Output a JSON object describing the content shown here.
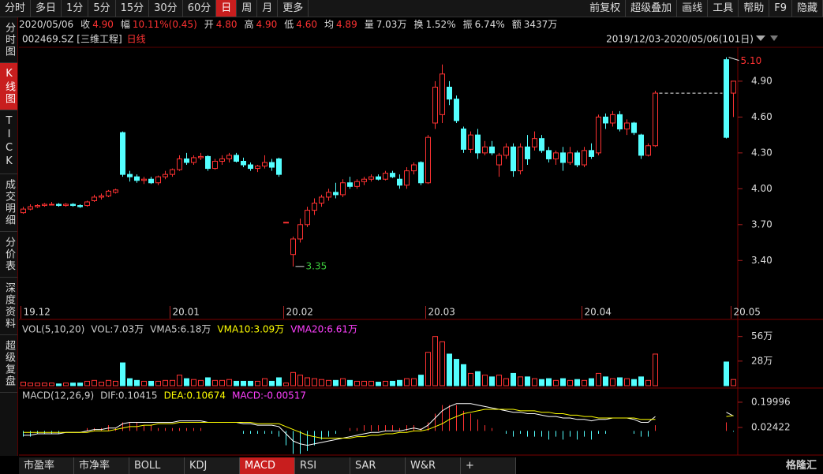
{
  "toolbar": {
    "left": [
      "分时",
      "多日",
      "1分",
      "5分",
      "15分",
      "30分",
      "60分",
      "日",
      "周",
      "月",
      "更多"
    ],
    "right": [
      "前复权",
      "超级叠加",
      "画线",
      "工具",
      "帮助",
      "F9",
      "隐藏"
    ],
    "active": 7
  },
  "info": {
    "date": "2020/05/06",
    "items": [
      {
        "label": "收",
        "value": "4.90",
        "color": "#ff3232"
      },
      {
        "label": "幅",
        "value": "10.11%(0.45)",
        "color": "#ff3232"
      },
      {
        "label": "开",
        "value": "4.80",
        "color": "#ff3232"
      },
      {
        "label": "高",
        "value": "4.90",
        "color": "#ff3232"
      },
      {
        "label": "低",
        "value": "4.60",
        "color": "#ff3232"
      },
      {
        "label": "均",
        "value": "4.89",
        "color": "#ff3232"
      },
      {
        "label": "量",
        "value": "7.03万",
        "color": "#dddddd"
      },
      {
        "label": "换",
        "value": "1.52%",
        "color": "#dddddd"
      },
      {
        "label": "振",
        "value": "6.74%",
        "color": "#dddddd"
      },
      {
        "label": "额",
        "value": "3437万",
        "color": "#dddddd"
      }
    ]
  },
  "sidebar": {
    "items": [
      "分时图",
      "K线图",
      "TICK",
      "成交明细",
      "分价表",
      "深度资料",
      "超级复盘"
    ],
    "active": 1
  },
  "tabs": {
    "items": [
      "市盈率",
      "市净率",
      "BOLL",
      "KDJ",
      "MACD",
      "RSI",
      "SAR",
      "W&R",
      "+"
    ],
    "active": 4
  },
  "logo": "格隆汇",
  "chart_data": [
    {
      "type": "candlestick",
      "stock": "002469.SZ [三维工程]",
      "period": "日线",
      "range": "2019/12/03-2020/05/06(101日)",
      "categories": [
        "19.12",
        null,
        null,
        null,
        null,
        null,
        null,
        null,
        null,
        null,
        null,
        null,
        null,
        null,
        null,
        null,
        null,
        null,
        null,
        null,
        null,
        "20.01",
        null,
        null,
        null,
        null,
        null,
        null,
        null,
        null,
        null,
        null,
        null,
        null,
        null,
        null,
        null,
        "20.02",
        null,
        null,
        null,
        null,
        null,
        null,
        null,
        null,
        null,
        null,
        null,
        null,
        null,
        null,
        null,
        null,
        null,
        null,
        null,
        "20.03",
        null,
        null,
        null,
        null,
        null,
        null,
        null,
        null,
        null,
        null,
        null,
        null,
        null,
        null,
        null,
        null,
        null,
        null,
        null,
        null,
        null,
        "20.04",
        null,
        null,
        null,
        null,
        null,
        null,
        null,
        null,
        null,
        null,
        null,
        null,
        null,
        null,
        null,
        null,
        null,
        null,
        null,
        null,
        "20.05"
      ],
      "ohlc": [
        [
          3.8,
          3.85,
          3.79,
          3.83
        ],
        [
          3.83,
          3.87,
          3.82,
          3.85
        ],
        [
          3.85,
          3.87,
          3.84,
          3.86
        ],
        [
          3.86,
          3.88,
          3.85,
          3.87
        ],
        [
          3.87,
          3.89,
          3.86,
          3.87
        ],
        [
          3.87,
          3.88,
          3.85,
          3.86
        ],
        [
          3.86,
          3.88,
          3.85,
          3.87
        ],
        [
          3.87,
          3.88,
          3.85,
          3.86
        ],
        [
          3.86,
          3.87,
          3.84,
          3.85
        ],
        [
          3.86,
          3.9,
          3.85,
          3.89
        ],
        [
          3.9,
          3.95,
          3.89,
          3.93
        ],
        [
          3.93,
          3.96,
          3.91,
          3.94
        ],
        [
          3.94,
          3.99,
          3.93,
          3.98
        ],
        [
          3.97,
          4.0,
          3.96,
          3.99
        ],
        [
          4.47,
          4.48,
          4.1,
          4.12
        ],
        [
          4.12,
          4.15,
          4.06,
          4.1
        ],
        [
          4.1,
          4.12,
          4.05,
          4.07
        ],
        [
          4.07,
          4.1,
          4.04,
          4.08
        ],
        [
          4.08,
          4.1,
          4.04,
          4.05
        ],
        [
          4.05,
          4.11,
          4.03,
          4.1
        ],
        [
          4.1,
          4.15,
          4.08,
          4.12
        ],
        [
          4.12,
          4.17,
          4.1,
          4.16
        ],
        [
          4.16,
          4.28,
          4.15,
          4.25
        ],
        [
          4.25,
          4.3,
          4.2,
          4.22
        ],
        [
          4.22,
          4.28,
          4.2,
          4.26
        ],
        [
          4.26,
          4.3,
          4.24,
          4.27
        ],
        [
          4.27,
          4.28,
          4.15,
          4.17
        ],
        [
          4.17,
          4.25,
          4.16,
          4.23
        ],
        [
          4.23,
          4.28,
          4.2,
          4.25
        ],
        [
          4.25,
          4.3,
          4.22,
          4.28
        ],
        [
          4.28,
          4.3,
          4.22,
          4.23
        ],
        [
          4.23,
          4.26,
          4.18,
          4.2
        ],
        [
          4.2,
          4.22,
          4.15,
          4.17
        ],
        [
          4.17,
          4.2,
          4.14,
          4.19
        ],
        [
          4.19,
          4.28,
          4.17,
          4.22
        ],
        [
          4.22,
          4.25,
          4.15,
          4.18
        ],
        [
          4.25,
          4.26,
          4.1,
          4.12
        ],
        [
          3.72,
          3.72,
          3.72,
          3.72
        ],
        [
          3.45,
          3.6,
          3.35,
          3.58
        ],
        [
          3.58,
          3.75,
          3.55,
          3.7
        ],
        [
          3.7,
          3.85,
          3.68,
          3.82
        ],
        [
          3.82,
          3.92,
          3.78,
          3.88
        ],
        [
          3.88,
          3.95,
          3.85,
          3.93
        ],
        [
          3.93,
          4.0,
          3.9,
          3.97
        ],
        [
          3.97,
          4.05,
          3.92,
          3.95
        ],
        [
          3.95,
          4.08,
          3.93,
          4.05
        ],
        [
          4.05,
          4.1,
          4.0,
          4.02
        ],
        [
          4.02,
          4.08,
          4.0,
          4.06
        ],
        [
          4.06,
          4.1,
          4.03,
          4.08
        ],
        [
          4.08,
          4.12,
          4.06,
          4.1
        ],
        [
          4.1,
          4.12,
          4.07,
          4.08
        ],
        [
          4.08,
          4.15,
          4.07,
          4.13
        ],
        [
          4.13,
          4.15,
          4.09,
          4.1
        ],
        [
          4.08,
          4.12,
          4.0,
          4.03
        ],
        [
          4.03,
          4.18,
          4.0,
          4.15
        ],
        [
          4.15,
          4.22,
          4.12,
          4.2
        ],
        [
          4.22,
          4.23,
          4.03,
          4.05
        ],
        [
          4.05,
          4.45,
          4.04,
          4.43
        ],
        [
          4.55,
          4.9,
          4.5,
          4.85
        ],
        [
          4.62,
          5.04,
          4.55,
          4.96
        ],
        [
          4.85,
          4.9,
          4.7,
          4.75
        ],
        [
          4.75,
          4.78,
          4.55,
          4.57
        ],
        [
          4.5,
          4.52,
          4.3,
          4.33
        ],
        [
          4.33,
          4.48,
          4.3,
          4.45
        ],
        [
          4.45,
          4.5,
          4.25,
          4.3
        ],
        [
          4.3,
          4.4,
          4.28,
          4.35
        ],
        [
          4.35,
          4.4,
          4.28,
          4.3
        ],
        [
          4.2,
          4.3,
          4.1,
          4.28
        ],
        [
          4.28,
          4.38,
          4.25,
          4.35
        ],
        [
          4.35,
          4.38,
          4.1,
          4.15
        ],
        [
          4.15,
          4.38,
          4.12,
          4.35
        ],
        [
          4.35,
          4.45,
          4.2,
          4.25
        ],
        [
          4.35,
          4.48,
          4.32,
          4.42
        ],
        [
          4.42,
          4.45,
          4.3,
          4.32
        ],
        [
          4.32,
          4.35,
          4.22,
          4.25
        ],
        [
          4.25,
          4.32,
          4.2,
          4.3
        ],
        [
          4.3,
          4.35,
          4.15,
          4.22
        ],
        [
          4.22,
          4.35,
          4.2,
          4.3
        ],
        [
          4.3,
          4.32,
          4.18,
          4.2
        ],
        [
          4.2,
          4.35,
          4.18,
          4.32
        ],
        [
          4.32,
          4.38,
          4.25,
          4.27
        ],
        [
          4.3,
          4.62,
          4.28,
          4.6
        ],
        [
          4.6,
          4.63,
          4.5,
          4.55
        ],
        [
          4.55,
          4.65,
          4.52,
          4.62
        ],
        [
          4.62,
          4.65,
          4.48,
          4.5
        ],
        [
          4.5,
          4.58,
          4.45,
          4.55
        ],
        [
          4.55,
          4.56,
          4.45,
          4.47
        ],
        [
          4.45,
          4.46,
          4.25,
          4.28
        ],
        [
          4.28,
          4.38,
          4.27,
          4.36
        ],
        [
          4.36,
          4.82,
          4.35,
          4.8
        ],
        null,
        null,
        null,
        null,
        null,
        null,
        null,
        null,
        null,
        [
          5.08,
          5.1,
          4.42,
          4.43
        ],
        [
          4.8,
          4.9,
          4.6,
          4.9
        ]
      ],
      "up_color": "#ff3232",
      "down_color": "#54ffff",
      "ylim": [
        2.94,
        5.17
      ],
      "yticks": [
        {
          "value": 3.4,
          "label": "3.40"
        },
        {
          "value": 3.7,
          "label": "3.70"
        },
        {
          "value": 4.0,
          "label": "4.00"
        },
        {
          "value": 4.3,
          "label": "4.30"
        },
        {
          "value": 4.6,
          "label": "4.60"
        },
        {
          "value": 4.9,
          "label": "4.90"
        }
      ],
      "max_label": "5.10",
      "min_label": "3.35",
      "max_color": "#ff3232",
      "min_color": "#3cc83c"
    },
    {
      "type": "bar",
      "legend": [
        {
          "text": "VOL(5,10,20)",
          "color": "#cccccc"
        },
        {
          "text": "VOL:7.03万",
          "color": "#cccccc"
        },
        {
          "text": "VMA5:6.18万",
          "color": "#cccccc"
        },
        {
          "text": "VMA10:3.09万",
          "color": "#ffff00"
        },
        {
          "text": "VMA20:6.61万",
          "color": "#ff40ff"
        }
      ],
      "values": [
        4,
        3,
        3,
        3,
        3,
        2,
        3,
        3,
        3,
        5,
        6,
        4,
        6,
        5,
        26,
        8,
        6,
        5,
        5,
        5,
        6,
        6,
        12,
        8,
        7,
        6,
        9,
        6,
        6,
        7,
        5,
        5,
        5,
        5,
        8,
        5,
        9,
        3,
        15,
        12,
        9,
        8,
        7,
        6,
        6,
        8,
        6,
        5,
        5,
        5,
        4,
        5,
        5,
        6,
        8,
        8,
        12,
        38,
        56,
        50,
        36,
        30,
        24,
        14,
        16,
        12,
        10,
        12,
        8,
        14,
        10,
        10,
        8,
        7,
        8,
        6,
        8,
        6,
        7,
        6,
        8,
        14,
        10,
        8,
        9,
        8,
        7,
        10,
        6,
        36,
        null,
        null,
        null,
        null,
        null,
        null,
        null,
        null,
        null,
        27,
        7.03
      ],
      "ylim": [
        0,
        62
      ],
      "yticks": [
        {
          "value": 56,
          "label": "56万"
        },
        {
          "value": 28,
          "label": "28万"
        }
      ]
    },
    {
      "type": "macd",
      "legend": [
        {
          "text": "MACD(12,26,9)",
          "color": "#cccccc"
        },
        {
          "text": "DIF:0.10415",
          "color": "#cccccc"
        },
        {
          "text": "DEA:0.10674",
          "color": "#ffff00"
        },
        {
          "text": "MACD:-0.00517",
          "color": "#ff40ff"
        }
      ],
      "dif": [
        -0.03,
        -0.03,
        -0.02,
        -0.02,
        -0.02,
        -0.02,
        -0.01,
        -0.01,
        -0.01,
        0,
        0.01,
        0.01,
        0.02,
        0.02,
        0.05,
        0.06,
        0.06,
        0.06,
        0.06,
        0.06,
        0.06,
        0.06,
        0.07,
        0.07,
        0.07,
        0.07,
        0.06,
        0.06,
        0.06,
        0.06,
        0.06,
        0.05,
        0.05,
        0.04,
        0.04,
        0.04,
        0.03,
        -0.02,
        -0.07,
        -0.09,
        -0.1,
        -0.09,
        -0.08,
        -0.07,
        -0.06,
        -0.05,
        -0.04,
        -0.03,
        -0.02,
        -0.01,
        -0.01,
        0,
        0,
        0,
        0.01,
        0.02,
        0.01,
        0.04,
        0.09,
        0.14,
        0.17,
        0.19,
        0.19,
        0.19,
        0.18,
        0.17,
        0.16,
        0.15,
        0.14,
        0.13,
        0.13,
        0.12,
        0.12,
        0.11,
        0.1,
        0.1,
        0.09,
        0.09,
        0.08,
        0.08,
        0.07,
        0.08,
        0.08,
        0.09,
        0.09,
        0.09,
        0.08,
        0.06,
        0.06,
        0.1,
        null,
        null,
        null,
        null,
        null,
        null,
        null,
        null,
        null,
        0.13,
        0.10415
      ],
      "dea": [
        -0.01,
        -0.01,
        -0.01,
        -0.01,
        -0.01,
        -0.01,
        -0.01,
        -0.01,
        -0.01,
        -0.01,
        0,
        0,
        0,
        0.01,
        0.02,
        0.03,
        0.03,
        0.04,
        0.04,
        0.05,
        0.05,
        0.05,
        0.06,
        0.06,
        0.06,
        0.06,
        0.06,
        0.06,
        0.06,
        0.06,
        0.06,
        0.06,
        0.06,
        0.05,
        0.05,
        0.05,
        0.05,
        0.03,
        0.01,
        -0.01,
        -0.03,
        -0.04,
        -0.05,
        -0.05,
        -0.05,
        -0.05,
        -0.05,
        -0.04,
        -0.04,
        -0.03,
        -0.03,
        -0.02,
        -0.02,
        -0.01,
        -0.01,
        0,
        0,
        0.01,
        0.03,
        0.05,
        0.08,
        0.1,
        0.12,
        0.13,
        0.14,
        0.15,
        0.15,
        0.15,
        0.15,
        0.15,
        0.14,
        0.14,
        0.14,
        0.13,
        0.13,
        0.12,
        0.12,
        0.11,
        0.11,
        0.1,
        0.1,
        0.09,
        0.09,
        0.09,
        0.09,
        0.09,
        0.09,
        0.08,
        0.08,
        0.08,
        null,
        null,
        null,
        null,
        null,
        null,
        null,
        null,
        null,
        0.1,
        0.10674
      ],
      "macd": [
        -0.04,
        -0.04,
        -0.02,
        -0.02,
        -0.02,
        -0.02,
        0,
        0,
        0,
        0.02,
        0.02,
        0.02,
        0.04,
        0.02,
        0.06,
        0.06,
        0.06,
        0.04,
        0.04,
        0.02,
        0.02,
        0.02,
        0.02,
        0.02,
        0.02,
        0.02,
        0,
        0,
        0,
        0,
        0,
        -0.02,
        -0.02,
        -0.02,
        -0.02,
        -0.02,
        -0.04,
        -0.1,
        -0.16,
        -0.16,
        -0.14,
        -0.1,
        -0.06,
        -0.04,
        -0.02,
        0,
        0.02,
        0.02,
        0.04,
        0.04,
        0.04,
        0.04,
        0.04,
        0.02,
        0.04,
        0.04,
        0.02,
        0.06,
        0.12,
        0.18,
        0.18,
        0.18,
        0.14,
        0.12,
        0.08,
        0.04,
        0.02,
        0,
        -0.02,
        -0.04,
        -0.02,
        -0.04,
        -0.04,
        -0.04,
        -0.06,
        -0.04,
        -0.06,
        -0.04,
        -0.06,
        -0.04,
        -0.06,
        -0.02,
        -0.02,
        0,
        0,
        0,
        -0.02,
        -0.04,
        -0.04,
        0.04,
        null,
        null,
        null,
        null,
        null,
        null,
        null,
        null,
        null,
        0.06,
        -0.00517
      ],
      "dif_color": "#ffffff",
      "dea_color": "#ffff00",
      "up_color": "#ff3232",
      "down_color": "#54ffff",
      "ylim": [
        -0.157,
        0.271
      ],
      "yticks": [
        0.19996,
        0.02422
      ]
    }
  ]
}
